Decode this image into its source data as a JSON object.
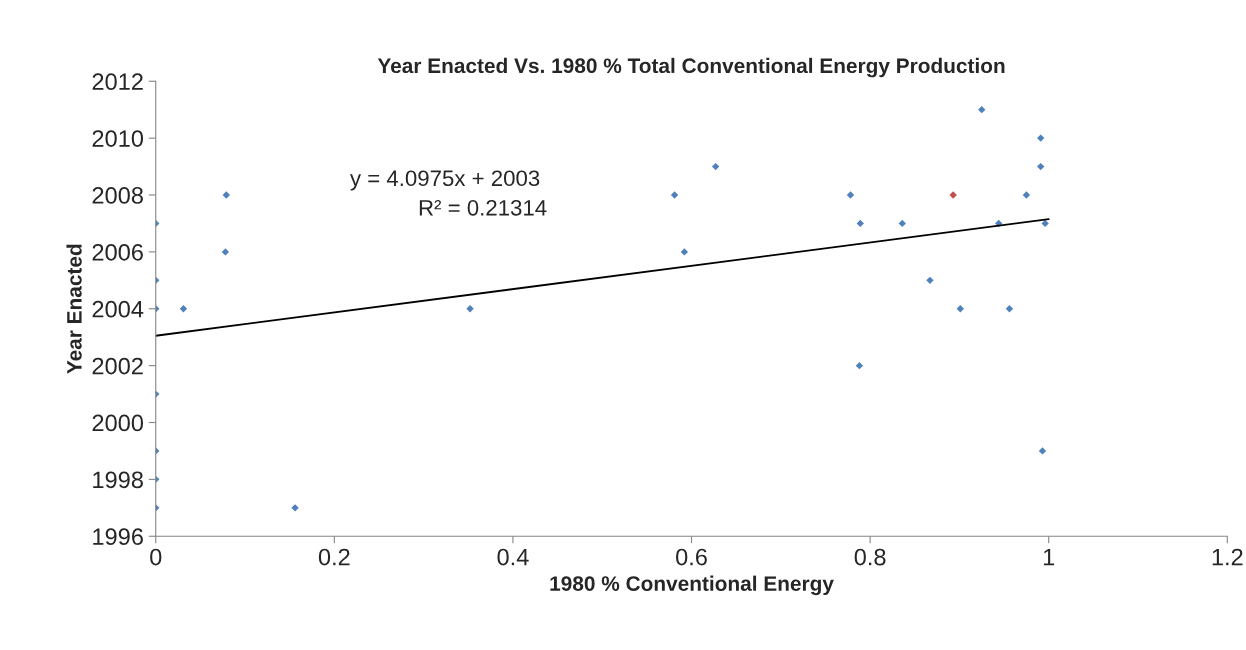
{
  "chart_data": {
    "type": "scatter",
    "title": "Year Enacted Vs. 1980 % Total Conventional Energy Production",
    "xlabel": "1980 % Conventional Energy",
    "ylabel": "Year Enacted",
    "series": [
      {
        "color": "#4f81bd",
        "marker": "diamond",
        "x": [
          0,
          0,
          0,
          0,
          0,
          0,
          0,
          0.031,
          0.079,
          0.078,
          0.156,
          0.352,
          0.581,
          0.592,
          0.627,
          0.778,
          0.789,
          0.788,
          0.836,
          0.867,
          0.925,
          0.901,
          0.944,
          0.956,
          0.975,
          0.991,
          0.991,
          0.996,
          0.993
        ],
        "values": [
          2007,
          2005,
          2004,
          2001,
          1999,
          1998,
          1997,
          2004,
          2008,
          2006,
          1997,
          2004,
          2008,
          2006,
          2009,
          2008,
          2007,
          2002,
          2007,
          2005,
          2011,
          2004,
          2007,
          2004,
          2008,
          2010,
          2009,
          2007,
          1999
        ]
      },
      {
        "color": "#c0504d",
        "marker": "diamond",
        "x": [
          0.893
        ],
        "values": [
          2008
        ]
      },
      {
        "type": "line",
        "color": "#000000",
        "x": [
          0,
          1
        ],
        "values": [
          2003.05,
          2007.15
        ]
      }
    ],
    "annotations": [
      "y = 4.0975x + 2003",
      "R² = 0.21314"
    ],
    "xlim": [
      0,
      1.2
    ],
    "xticks": [
      0,
      0.2,
      0.4,
      0.6,
      0.8,
      1,
      1.2
    ],
    "ylim": [
      1996,
      2012
    ],
    "yticks": [
      1996,
      1998,
      2000,
      2002,
      2004,
      2006,
      2008,
      2010,
      2012
    ],
    "grid": false,
    "legend": false
  }
}
